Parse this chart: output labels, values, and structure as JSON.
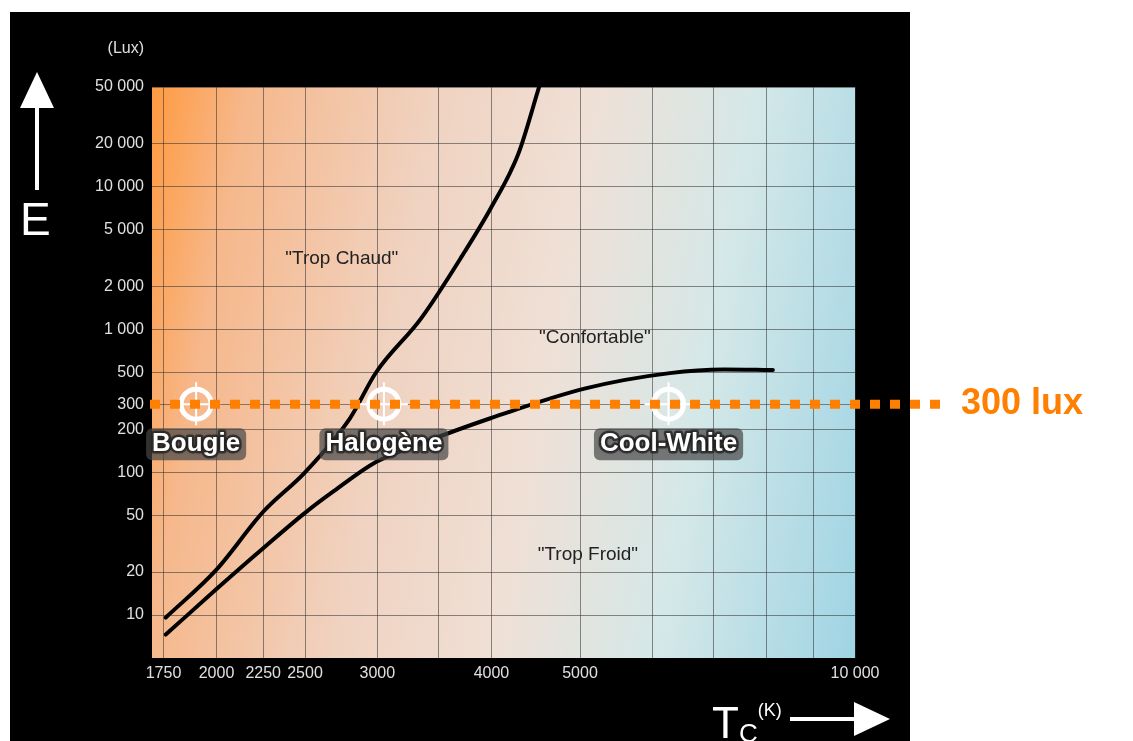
{
  "chart_data": {
    "type": "line",
    "xlabel": "T$_{C}$$^{(K)}$",
    "ylabel": "E",
    "xlim": [
      1700,
      10000
    ],
    "xticks": [
      1750,
      2000,
      2250,
      2500,
      3000,
      {
        "value": 3500,
        "label": null
      },
      4000,
      5000,
      {
        "value": 6000,
        "label": null
      },
      {
        "value": 7000,
        "label": null
      },
      {
        "value": 8000,
        "label": null
      },
      {
        "value": 9000,
        "label": null
      },
      {
        "value": 10000,
        "label": "10 000"
      }
    ],
    "ylim": [
      5,
      50000
    ],
    "yticks": [
      10,
      20,
      50,
      100,
      200,
      {
        "value": 300,
        "label": "300"
      },
      500,
      {
        "value": 1000,
        "label": "1 000"
      },
      {
        "value": 2000,
        "label": "2 000"
      },
      {
        "value": 5000,
        "label": "5 000"
      },
      {
        "value": 10000,
        "label": "10 000"
      },
      {
        "value": 20000,
        "label": "20 000"
      },
      {
        "value": 50000,
        "label": "50 000"
      }
    ],
    "log": "xy",
    "grid": true,
    "legend": false,
    "marker": "none",
    "line_style": "solid",
    "series": [
      {
        "color": "#000000",
        "x": [
          1760,
          2000,
          2250,
          2500,
          2800,
          2990,
          3350,
          3740,
          3990,
          4280,
          4510
        ],
        "values": [
          9.6,
          20.8,
          52.9,
          100,
          239,
          500,
          1197,
          3520,
          7020,
          17000,
          50000
        ]
      },
      {
        "color": "#000000",
        "x": [
          1760,
          2000,
          2250,
          2500,
          2690,
          2990,
          3350,
          3990,
          5070,
          6270,
          7190,
          8130
        ],
        "values": [
          7.3,
          15.2,
          29.4,
          52,
          74,
          118,
          159,
          239,
          387,
          495,
          524,
          520
        ]
      },
      {
        "type": "scatter",
        "color": "#ffffff",
        "marker": "circle",
        "x": [
          1900,
          3050,
          6250
        ],
        "values": [
          300,
          300,
          300
        ]
      }
    ],
    "ref_lines": [
      {
        "axis": "y",
        "value": 300,
        "label": "300 lux",
        "color": "#ff7f00",
        "line_style": "dotted"
      }
    ],
    "annotations": [
      "(Lux)",
      {
        "text": "Bougie",
        "x": 1900,
        "y": 300
      },
      {
        "text": "Halogène",
        "x": 3050,
        "y": 300
      },
      {
        "text": "Cool-White",
        "x": 6250,
        "y": 300
      },
      "\"Trop Chaud\"",
      "\"Confortable\"",
      "\"Trop Froid\""
    ]
  }
}
